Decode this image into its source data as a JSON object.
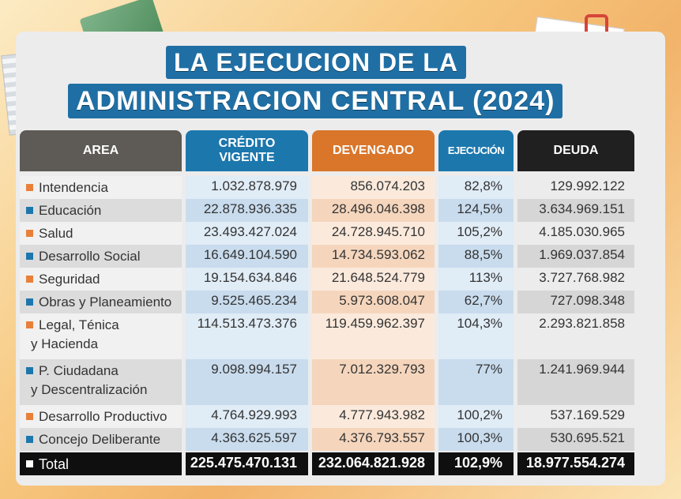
{
  "title": {
    "line1": "LA EJECUCION DE LA",
    "line2": "ADMINISTRACION CENTRAL (2024)"
  },
  "headers": {
    "area": "AREA",
    "credito_1": "CRÉDITO",
    "credito_2": "VIGENTE",
    "devengado": "DEVENGADO",
    "ejecucion": "EJECUCIÓN",
    "deuda": "DEUDA"
  },
  "colors": {
    "blue": "#1c77ad",
    "orange": "#d9762a",
    "dark": "#202020"
  },
  "rows": [
    {
      "area_1": "Intendencia",
      "area_2": "",
      "credito": "1.032.878.979",
      "devengado": "856.074.203",
      "ejecucion": "82,8%",
      "deuda": "129.992.122",
      "bullet": "orange"
    },
    {
      "area_1": "Educación",
      "area_2": "",
      "credito": "22.878.936.335",
      "devengado": "28.496.046.398",
      "ejecucion": "124,5%",
      "deuda": "3.634.969.151",
      "bullet": "blue"
    },
    {
      "area_1": "Salud",
      "area_2": "",
      "credito": "23.493.427.024",
      "devengado": "24.728.945.710",
      "ejecucion": "105,2%",
      "deuda": "4.185.030.965",
      "bullet": "orange"
    },
    {
      "area_1": "Desarrollo Social",
      "area_2": "",
      "credito": "16.649.104.590",
      "devengado": "14.734.593.062",
      "ejecucion": "88,5%",
      "deuda": "1.969.037.854",
      "bullet": "blue"
    },
    {
      "area_1": "Seguridad",
      "area_2": "",
      "credito": "19.154.634.846",
      "devengado": "21.648.524.779",
      "ejecucion": "113%",
      "deuda": "3.727.768.982",
      "bullet": "orange"
    },
    {
      "area_1": "Obras y Planeamiento",
      "area_2": "",
      "credito": "9.525.465.234",
      "devengado": "5.973.608.047",
      "ejecucion": "62,7%",
      "deuda": "727.098.348",
      "bullet": "blue"
    },
    {
      "area_1": "Legal, Ténica",
      "area_2": "y Hacienda",
      "credito": "114.513.473.376",
      "devengado": "119.459.962.397",
      "ejecucion": "104,3%",
      "deuda": "2.293.821.858",
      "bullet": "orange"
    },
    {
      "area_1": "P. Ciudadana",
      "area_2": "y Descentralización",
      "credito": "9.098.994.157",
      "devengado": "7.012.329.793",
      "ejecucion": "77%",
      "deuda": "1.241.969.944",
      "bullet": "blue"
    },
    {
      "area_1": "Desarrollo Productivo",
      "area_2": "",
      "credito": "4.764.929.993",
      "devengado": "4.777.943.982",
      "ejecucion": "100,2%",
      "deuda": "537.169.529",
      "bullet": "orange"
    },
    {
      "area_1": "Concejo Deliberante",
      "area_2": "",
      "credito": "4.363.625.597",
      "devengado": "4.376.793.557",
      "ejecucion": "100,3%",
      "deuda": "530.695.521",
      "bullet": "blue"
    }
  ],
  "total": {
    "area": "Total",
    "credito": "225.475.470.131",
    "devengado": "232.064.821.928",
    "ejecucion": "102,9%",
    "deuda": "18.977.554.274"
  }
}
